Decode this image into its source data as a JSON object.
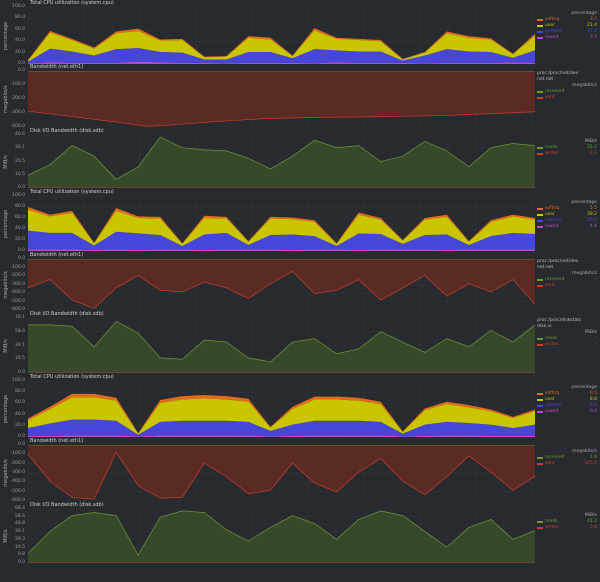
{
  "colors": {
    "softirq": "#e46a1e",
    "user": "#c9c600",
    "system": "#4646d8",
    "iowait": "#c246d2",
    "received": "#6a9c2a",
    "sent": "#d23c28",
    "reads": "#6a9a33",
    "writes": "#d23c28",
    "net_fill": "#5a2a24",
    "disk_fill": "#38482a",
    "grid": "#33373d"
  },
  "charts": [
    {
      "kind": "cpu",
      "title": "Total CPU utilization (system.cpu)",
      "ylabel": "percentage",
      "ticks": [
        "100.0",
        "80.0",
        "60.0",
        "40.0",
        "20.0",
        "0.0"
      ],
      "ylim": [
        0,
        100
      ],
      "legend": {
        "units": "percentage",
        "rows": [
          {
            "name": "softirq",
            "value": "3.7"
          },
          {
            "name": "user",
            "value": "21.4"
          },
          {
            "name": "system",
            "value": "17.6"
          },
          {
            "name": "iowait",
            "value": "3.7"
          }
        ]
      },
      "series": {
        "iowait": [
          1,
          3,
          2,
          2,
          2,
          4,
          3,
          2,
          2,
          1,
          2,
          2,
          2,
          1,
          3,
          2,
          2,
          2,
          1,
          2,
          2,
          2,
          3,
          2
        ],
        "system": [
          3,
          24,
          20,
          13,
          24,
          24,
          18,
          18,
          6,
          7,
          19,
          19,
          8,
          25,
          21,
          20,
          20,
          4,
          14,
          24,
          20,
          19,
          8,
          22
        ],
        "user": [
          2,
          28,
          20,
          12,
          28,
          30,
          20,
          22,
          4,
          5,
          25,
          22,
          4,
          33,
          20,
          20,
          18,
          2,
          5,
          28,
          24,
          22,
          6,
          26
        ],
        "softirq": [
          1,
          3,
          2,
          2,
          3,
          4,
          2,
          2,
          1,
          1,
          3,
          3,
          1,
          4,
          2,
          2,
          2,
          1,
          1,
          3,
          3,
          2,
          1,
          3
        ]
      }
    },
    {
      "kind": "net",
      "title": "Bandwidth (net.eth1)",
      "ylabel": "megabits/s",
      "ticks": [
        "0.0",
        "-100.0",
        "-200.0",
        "-300.0",
        "-400.0"
      ],
      "ylim": [
        -460,
        0
      ],
      "legend": {
        "source": "proc:/proc/net/dev",
        "context": "net.net",
        "units": "megabits/s",
        "rows": [
          {
            "name": "received",
            "value": "-"
          },
          {
            "name": "sent",
            "value": "-"
          }
        ]
      },
      "series": {
        "received": [
          0,
          0,
          0,
          0,
          0,
          0,
          0,
          0,
          0,
          0,
          0,
          0,
          0,
          0,
          0,
          0,
          0,
          0
        ],
        "sent": [
          -330,
          -360,
          -390,
          -420,
          -455,
          -440,
          -420,
          -405,
          -390,
          -385,
          -380,
          -378,
          -374,
          -370,
          -365,
          -355,
          -345,
          -335
        ]
      }
    },
    {
      "kind": "disk",
      "title": "Disk I/O Bandwidth (disk.sdb)",
      "ylabel": "MiB/s",
      "ticks": [
        "40.6",
        "30.1",
        "20.5",
        "10.5",
        "0.0"
      ],
      "ylim": [
        0,
        50
      ],
      "legend": {
        "units": "MiB/s",
        "rows": [
          {
            "name": "reads",
            "value": "55.2"
          },
          {
            "name": "writes",
            "value": "-1.1"
          }
        ]
      },
      "series": {
        "reads": [
          12,
          22,
          40,
          30,
          8,
          20,
          48,
          38,
          36,
          35,
          28,
          18,
          30,
          45,
          38,
          40,
          25,
          30,
          44,
          35,
          20,
          38,
          42,
          40
        ],
        "writes": [
          0,
          0,
          0,
          0,
          0,
          0,
          0,
          0,
          0,
          0,
          0,
          0,
          0,
          0,
          0,
          0,
          0,
          0,
          0,
          0,
          0,
          0,
          0,
          0
        ]
      }
    },
    {
      "kind": "cpu",
      "title": "Total CPU utilization (system.cpu)",
      "ylabel": "percentage",
      "ticks": [
        "100.0",
        "80.0",
        "60.0",
        "40.0",
        "20.0",
        "0.0"
      ],
      "ylim": [
        0,
        100
      ],
      "legend": {
        "units": "percentage",
        "rows": [
          {
            "name": "softirq",
            "value": "5.5"
          },
          {
            "name": "user",
            "value": "39.2"
          },
          {
            "name": "system",
            "value": "26.0"
          },
          {
            "name": "iowait",
            "value": "4.4"
          }
        ]
      },
      "series": {
        "iowait": [
          3,
          3,
          3,
          2,
          3,
          2,
          3,
          3,
          2,
          3,
          3,
          3,
          2,
          3,
          3,
          2,
          3,
          3,
          3,
          2,
          3,
          3,
          3,
          3
        ],
        "system": [
          34,
          30,
          30,
          8,
          32,
          30,
          26,
          6,
          28,
          30,
          8,
          26,
          28,
          24,
          6,
          30,
          28,
          10,
          26,
          28,
          8,
          24,
          30,
          28
        ],
        "user": [
          38,
          30,
          36,
          4,
          38,
          28,
          30,
          4,
          30,
          26,
          6,
          30,
          28,
          26,
          4,
          34,
          26,
          6,
          28,
          32,
          6,
          26,
          30,
          26
        ],
        "softirq": [
          5,
          3,
          4,
          1,
          5,
          3,
          3,
          1,
          4,
          3,
          1,
          3,
          3,
          3,
          1,
          4,
          3,
          1,
          3,
          4,
          1,
          3,
          3,
          3
        ]
      }
    },
    {
      "kind": "net",
      "title": "Bandwidth (net.eth1)",
      "ylabel": "megabits/s",
      "ticks": [
        "0.0",
        "-100.0",
        "-200.0",
        "-300.0",
        "-400.0",
        "-500.0",
        "-600.0"
      ],
      "ylim": [
        -620,
        0
      ],
      "legend": {
        "source": "proc:/proc/net/dev",
        "context": "net.net",
        "units": "megabits/s",
        "rows": [
          {
            "name": "received",
            "value": "-"
          },
          {
            "name": "sent",
            "value": "-"
          }
        ]
      },
      "series": {
        "received": [
          0,
          0,
          0,
          0,
          0,
          0,
          0,
          0,
          0,
          0,
          0,
          0,
          0,
          0,
          0,
          0,
          0,
          0,
          0,
          0,
          0,
          0,
          0,
          0
        ],
        "sent": [
          -350,
          -250,
          -500,
          -600,
          -350,
          -200,
          -380,
          -400,
          -280,
          -350,
          -480,
          -300,
          -150,
          -420,
          -380,
          -250,
          -500,
          -350,
          -200,
          -450,
          -300,
          -400,
          -250,
          -550
        ]
      }
    },
    {
      "kind": "disk",
      "title": "Disk I/O Bandwidth (disk.sdb)",
      "ylabel": "MiB/s",
      "ticks": [
        "78.1",
        "58.6",
        "39.1",
        "19.5",
        "0.0"
      ],
      "ylim": [
        0,
        80
      ],
      "legend": {
        "source": "proc:/proc/diskstats",
        "context": "disk.io",
        "units": "MiB/s",
        "rows": [
          {
            "name": "reads",
            "value": "-"
          },
          {
            "name": "writes",
            "value": "-"
          }
        ]
      },
      "series": {
        "reads": [
          70,
          70,
          68,
          38,
          75,
          58,
          22,
          20,
          48,
          45,
          22,
          16,
          45,
          50,
          28,
          35,
          60,
          45,
          30,
          50,
          38,
          62,
          45,
          70
        ],
        "writes": [
          0,
          0,
          0,
          0,
          0,
          0,
          0,
          0,
          0,
          0,
          0,
          0,
          0,
          0,
          0,
          0,
          0,
          0,
          0,
          0,
          0,
          0,
          0,
          0
        ]
      }
    },
    {
      "kind": "cpu",
      "title": "Total CPU utilization (system.cpu)",
      "ylabel": "percentage",
      "ticks": [
        "100.0",
        "80.0",
        "60.0",
        "40.0",
        "20.0",
        "0.0"
      ],
      "ylim": [
        0,
        100
      ],
      "legend": {
        "units": "percentage",
        "rows": [
          {
            "name": "softirq",
            "value": "0.5"
          },
          {
            "name": "user",
            "value": "8.8"
          },
          {
            "name": "system",
            "value": "6.2"
          },
          {
            "name": "iowait",
            "value": "0.0"
          }
        ]
      },
      "series": {
        "iowait": [
          2,
          2,
          3,
          3,
          3,
          1,
          3,
          3,
          3,
          3,
          3,
          1,
          2,
          3,
          3,
          3,
          3,
          1,
          2,
          3,
          3,
          2,
          2,
          2
        ],
        "system": [
          14,
          22,
          28,
          28,
          26,
          3,
          24,
          26,
          26,
          26,
          24,
          10,
          20,
          26,
          26,
          26,
          24,
          5,
          20,
          24,
          22,
          20,
          14,
          20
        ],
        "user": [
          14,
          26,
          40,
          40,
          36,
          2,
          34,
          38,
          40,
          38,
          36,
          6,
          28,
          38,
          38,
          36,
          32,
          3,
          26,
          32,
          28,
          24,
          18,
          24
        ],
        "softirq": [
          3,
          4,
          6,
          6,
          5,
          1,
          5,
          6,
          6,
          6,
          5,
          1,
          4,
          5,
          5,
          5,
          4,
          1,
          3,
          4,
          4,
          3,
          2,
          3
        ]
      }
    },
    {
      "kind": "net",
      "title": "Bandwidth (net.eth1)",
      "ylabel": "megabits/s",
      "ticks": [
        "0.0",
        "-100.0",
        "-200.0",
        "-300.0",
        "-400.0",
        "-500.0",
        "-600.0"
      ],
      "ylim": [
        -620,
        0
      ],
      "legend": {
        "units": "megabits/s",
        "rows": [
          {
            "name": "received",
            "value": "1.8"
          },
          {
            "name": "sent",
            "value": "-345.6"
          }
        ]
      },
      "series": {
        "received": [
          0,
          0,
          0,
          0,
          0,
          0,
          0,
          0,
          0,
          0,
          0,
          0,
          0,
          0,
          0,
          0,
          0,
          0,
          0,
          0,
          0,
          0,
          0,
          0
        ],
        "sent": [
          -100,
          -400,
          -580,
          -600,
          -80,
          -450,
          -590,
          -580,
          -200,
          -350,
          -540,
          -500,
          -200,
          -420,
          -520,
          -300,
          -150,
          -400,
          -550,
          -350,
          -120,
          -300,
          -500,
          -345
        ]
      }
    },
    {
      "kind": "disk",
      "title": "Disk I/O Bandwidth (disk.sdb)",
      "ylabel": "MiB/s",
      "ticks": [
        "68.4",
        "58.6",
        "48.8",
        "39.1",
        "29.3",
        "19.5",
        "9.8",
        "0.0"
      ],
      "ylim": [
        0,
        68.4
      ],
      "legend": {
        "units": "MiB/s",
        "rows": [
          {
            "name": "reads",
            "value": "41.2"
          },
          {
            "name": "writes",
            "value": "0.8"
          }
        ]
      },
      "series": {
        "reads": [
          12,
          40,
          60,
          64,
          60,
          10,
          58,
          66,
          64,
          42,
          28,
          45,
          60,
          50,
          30,
          55,
          66,
          60,
          40,
          20,
          45,
          55,
          30,
          41
        ],
        "writes": [
          0,
          0,
          0,
          0,
          0,
          0,
          0,
          0,
          0,
          0,
          0,
          0,
          0,
          0,
          0,
          0,
          0,
          0,
          0,
          0,
          0,
          0,
          0,
          0
        ]
      }
    }
  ]
}
